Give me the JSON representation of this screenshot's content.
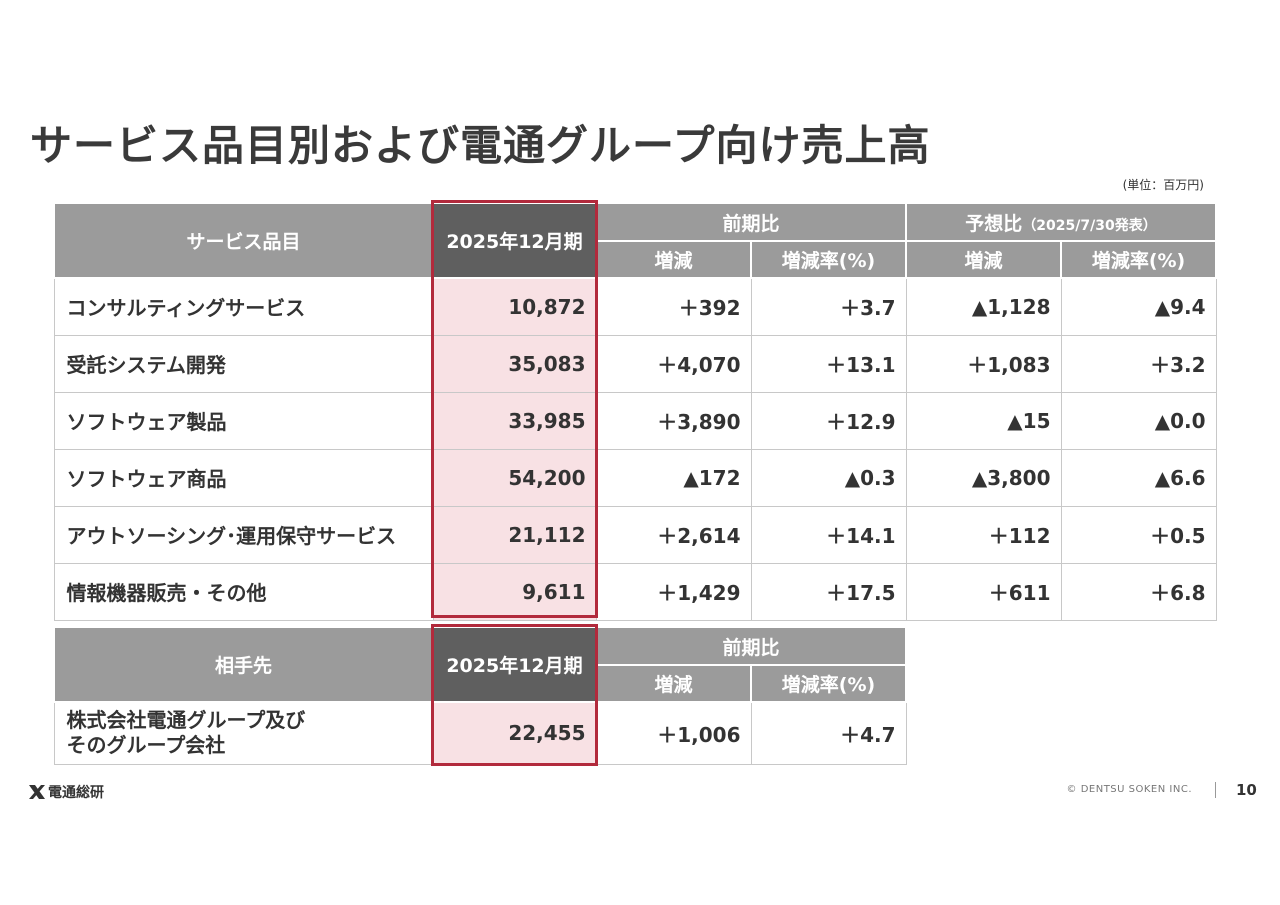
{
  "title": "サービス品目別および電通グループ向け売上高",
  "unit": "(単位：百万円)",
  "table1": {
    "header": {
      "item": "サービス品目",
      "period": "2025年12月期",
      "yoy": "前期比",
      "forecast": "予想比",
      "forecast_note": "（2025/7/30発表）",
      "change": "増減",
      "rate": "増減率(%)"
    },
    "rows": [
      {
        "label": "コンサルティングサービス",
        "value": "10,872",
        "yoy_change": "＋392",
        "yoy_rate": "＋3.7",
        "fc_change": "▲1,128",
        "fc_rate": "▲9.4"
      },
      {
        "label": "受託システム開発",
        "value": "35,083",
        "yoy_change": "＋4,070",
        "yoy_rate": "＋13.1",
        "fc_change": "＋1,083",
        "fc_rate": "＋3.2"
      },
      {
        "label": "ソフトウェア製品",
        "value": "33,985",
        "yoy_change": "＋3,890",
        "yoy_rate": "＋12.9",
        "fc_change": "▲15",
        "fc_rate": "▲0.0"
      },
      {
        "label": "ソフトウェア商品",
        "value": "54,200",
        "yoy_change": "▲172",
        "yoy_rate": "▲0.3",
        "fc_change": "▲3,800",
        "fc_rate": "▲6.6"
      },
      {
        "label": "アウトソーシング･運用保守サービス",
        "value": "21,112",
        "yoy_change": "＋2,614",
        "yoy_rate": "＋14.1",
        "fc_change": "＋112",
        "fc_rate": "＋0.5"
      },
      {
        "label": "情報機器販売・その他",
        "value": "9,611",
        "yoy_change": "＋1,429",
        "yoy_rate": "＋17.5",
        "fc_change": "＋611",
        "fc_rate": "＋6.8"
      }
    ]
  },
  "table2": {
    "header": {
      "item": "相手先",
      "period": "2025年12月期",
      "yoy": "前期比",
      "change": "増減",
      "rate": "増減率(%)"
    },
    "row": {
      "label_line1": "株式会社電通グループ及び",
      "label_line2": "そのグループ会社",
      "value": "22,455",
      "yoy_change": "＋1,006",
      "yoy_rate": "＋4.7"
    }
  },
  "footer": {
    "logo_text": "電通総研",
    "copyright": "© DENTSU SOKEN INC.",
    "page": "10"
  },
  "colors": {
    "accent": "#b22a3c",
    "highlight": "#f8e1e4",
    "header": "#9b9b9b",
    "header_dark": "#5f5f5f"
  }
}
